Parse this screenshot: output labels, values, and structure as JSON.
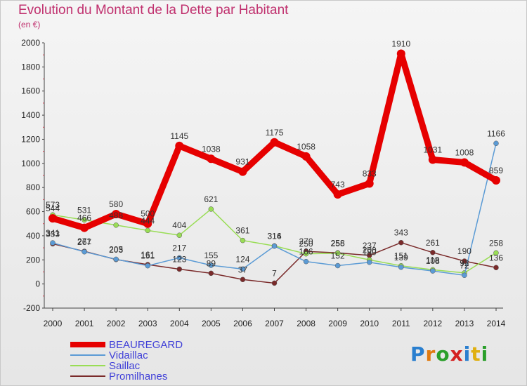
{
  "chart_data": {
    "type": "line",
    "title": "Evolution du Montant de la Dette par Habitant",
    "subtitle": "(en €)",
    "x": [
      "2000",
      "2001",
      "2002",
      "2003",
      "2004",
      "2005",
      "2006",
      "2007",
      "2008",
      "2009",
      "2010",
      "2011",
      "2012",
      "2013",
      "2014"
    ],
    "ylim": [
      -200,
      2000
    ],
    "yticks": [
      -200,
      0,
      200,
      400,
      600,
      800,
      1000,
      1200,
      1400,
      1600,
      1800,
      2000
    ],
    "grid": false,
    "legend_position": "bottom-left",
    "series": [
      {
        "name": "BEAUREGARD",
        "color": "#e60000",
        "values": [
          544,
          466,
          580,
          500,
          1145,
          1038,
          931,
          1175,
          1058,
          743,
          833,
          1910,
          1031,
          1008,
          859
        ]
      },
      {
        "name": "Vidaillac",
        "color": "#5b9bd5",
        "values": [
          341,
          267,
          205,
          151,
          217,
          155,
          124,
          314,
          186,
          152,
          180,
          139,
          108,
          72,
          1166
        ]
      },
      {
        "name": "Saillac",
        "color": "#99dd55",
        "values": [
          573,
          531,
          488,
          444,
          404,
          621,
          361,
          316,
          250,
          255,
          200,
          151,
          118,
          92,
          258
        ]
      },
      {
        "name": "Promilhanes",
        "color": "#7a2a2a",
        "values": [
          333,
          271,
          203,
          161,
          123,
          89,
          37,
          7,
          270,
          258,
          237,
          343,
          261,
          190,
          136
        ]
      }
    ]
  },
  "logo": {
    "letters": [
      "P",
      "r",
      "o",
      "x",
      "i",
      "t",
      "i"
    ],
    "colors": [
      "#2a7fcf",
      "#e07a10",
      "#2a9f2a",
      "#d42020",
      "#2a7fcf",
      "#e0b010",
      "#2a9f2a"
    ]
  }
}
